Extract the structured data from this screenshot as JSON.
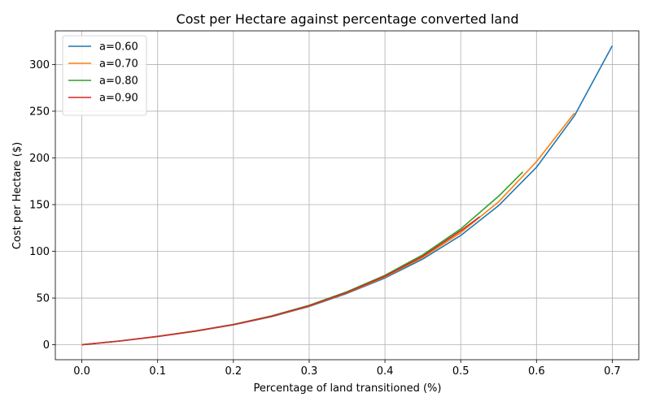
{
  "chart_data": {
    "type": "line",
    "title": "Cost per Hectare against percentage converted land",
    "xlabel": "Percentage of land transitioned (%)",
    "ylabel": "Cost per Hectare ($)",
    "xlim": [
      -0.035,
      0.735
    ],
    "ylim": [
      -16,
      336
    ],
    "xticks": [
      0.0,
      0.1,
      0.2,
      0.3,
      0.4,
      0.5,
      0.6,
      0.7
    ],
    "xtick_labels": [
      "0.0",
      "0.1",
      "0.2",
      "0.3",
      "0.4",
      "0.5",
      "0.6",
      "0.7"
    ],
    "yticks": [
      0,
      50,
      100,
      150,
      200,
      250,
      300
    ],
    "ytick_labels": [
      "0",
      "50",
      "100",
      "150",
      "200",
      "250",
      "300"
    ],
    "grid": true,
    "legend_position": "top-left",
    "series": [
      {
        "name": "a=0.60",
        "color": "#1f77b4",
        "x": [
          0.0,
          0.05,
          0.1,
          0.15,
          0.2,
          0.25,
          0.3,
          0.35,
          0.4,
          0.45,
          0.5,
          0.55,
          0.6,
          0.65,
          0.7
        ],
        "y": [
          0,
          4,
          8.8,
          14.5,
          21.3,
          30,
          41,
          55,
          71.5,
          91.8,
          117,
          149,
          190,
          245,
          320
        ]
      },
      {
        "name": "a=0.70",
        "color": "#ff7f0e",
        "x": [
          0.0,
          0.05,
          0.1,
          0.15,
          0.2,
          0.25,
          0.3,
          0.35,
          0.4,
          0.45,
          0.5,
          0.55,
          0.6,
          0.65
        ],
        "y": [
          0,
          4,
          8.9,
          14.6,
          21.5,
          30.3,
          41.4,
          55.6,
          72.5,
          93.5,
          120,
          153,
          196,
          248
        ]
      },
      {
        "name": "a=0.80",
        "color": "#2ca02c",
        "x": [
          0.0,
          0.05,
          0.1,
          0.15,
          0.2,
          0.25,
          0.3,
          0.35,
          0.4,
          0.45,
          0.5,
          0.55,
          0.582
        ],
        "y": [
          0,
          4.1,
          9,
          14.8,
          21.8,
          30.8,
          42.2,
          56.8,
          74.3,
          96.3,
          124,
          159,
          185
        ]
      },
      {
        "name": "a=0.90",
        "color": "#d62728",
        "x": [
          0.0,
          0.05,
          0.1,
          0.15,
          0.2,
          0.25,
          0.3,
          0.35,
          0.4,
          0.45,
          0.5,
          0.525
        ],
        "y": [
          0,
          4,
          8.9,
          14.7,
          21.6,
          30.5,
          41.7,
          56,
          73.3,
          94.8,
          122,
          137
        ]
      }
    ]
  }
}
